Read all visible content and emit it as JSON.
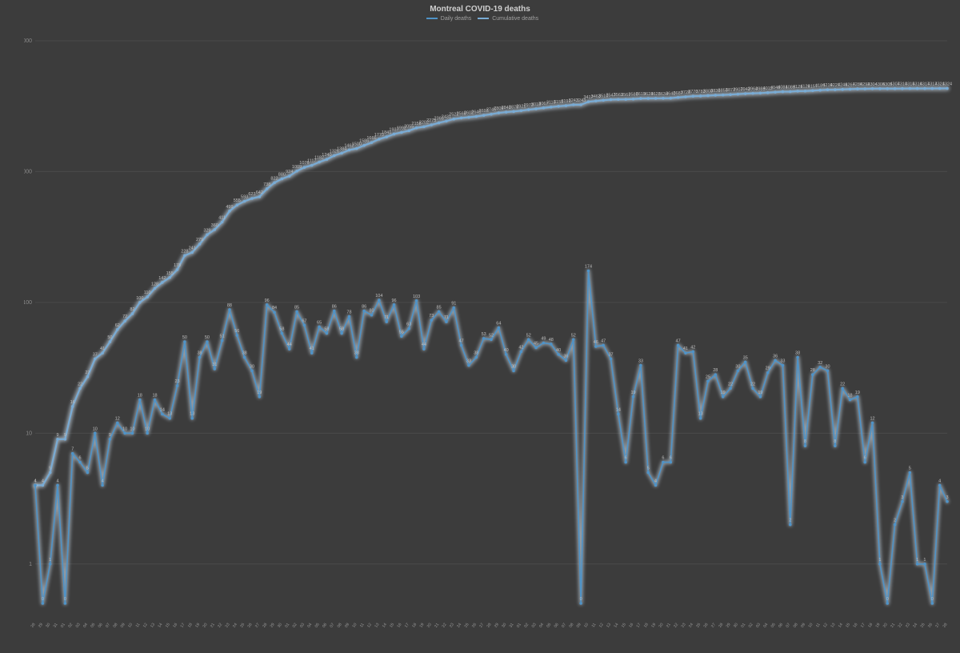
{
  "title": "Montreal COVID-19 deaths",
  "legend": {
    "series1": "Daily deaths",
    "series2": "Cumulative deaths"
  },
  "background_color": "#3c3c3c",
  "grid_color": "#4a4a4a",
  "glow_color": "#dbeeff",
  "y_axis": {
    "scale": "log",
    "ticks": [
      1,
      10,
      100,
      1000,
      10000
    ],
    "min": 0.5,
    "max": 12000
  },
  "series": {
    "daily": {
      "name": "Daily deaths",
      "color": "#4f93c7",
      "line_width": 1.6,
      "marker": "circle",
      "marker_radius": 1.8,
      "show_label": true,
      "label_fontsize": 5.5
    },
    "cumulative": {
      "name": "Cumulative deaths",
      "color": "#79abd4",
      "line_width": 2.2,
      "marker": "circle",
      "marker_radius": 1.8,
      "show_label": true,
      "label_fontsize": 5.5
    }
  },
  "x_dates": [
    "2020-03-28",
    "2020-03-29",
    "2020-03-30",
    "2020-03-31",
    "2020-04-01",
    "2020-04-02",
    "2020-04-03",
    "2020-04-04",
    "2020-04-05",
    "2020-04-06",
    "2020-04-07",
    "2020-04-08",
    "2020-04-09",
    "2020-04-10",
    "2020-04-11",
    "2020-04-12",
    "2020-04-13",
    "2020-04-14",
    "2020-04-15",
    "2020-04-16",
    "2020-04-17",
    "2020-04-18",
    "2020-04-19",
    "2020-04-20",
    "2020-04-21",
    "2020-04-22",
    "2020-04-23",
    "2020-04-24",
    "2020-04-25",
    "2020-04-26",
    "2020-04-27",
    "2020-04-28",
    "2020-04-29",
    "2020-04-30",
    "2020-05-01",
    "2020-05-02",
    "2020-05-03",
    "2020-05-04",
    "2020-05-05",
    "2020-05-06",
    "2020-05-07",
    "2020-05-08",
    "2020-05-09",
    "2020-05-10",
    "2020-05-11",
    "2020-05-12",
    "2020-05-13",
    "2020-05-14",
    "2020-05-15",
    "2020-05-16",
    "2020-05-17",
    "2020-05-18",
    "2020-05-19",
    "2020-05-20",
    "2020-05-21",
    "2020-05-22",
    "2020-05-23",
    "2020-05-24",
    "2020-05-25",
    "2020-05-26",
    "2020-05-27",
    "2020-05-28",
    "2020-05-29",
    "2020-05-30",
    "2020-05-31",
    "2020-06-01",
    "2020-06-02",
    "2020-06-03",
    "2020-06-04",
    "2020-06-05",
    "2020-06-06",
    "2020-06-07",
    "2020-06-08",
    "2020-06-09",
    "2020-06-10",
    "2020-06-11",
    "2020-06-12",
    "2020-06-13",
    "2020-06-14",
    "2020-06-15",
    "2020-06-16",
    "2020-06-17",
    "2020-06-18",
    "2020-06-19",
    "2020-06-20",
    "2020-06-21",
    "2020-06-22",
    "2020-06-23",
    "2020-06-24",
    "2020-06-25",
    "2020-06-26",
    "2020-06-27",
    "2020-06-28",
    "2020-06-29",
    "2020-06-30",
    "2020-07-01",
    "2020-07-02",
    "2020-07-03",
    "2020-07-04",
    "2020-07-05",
    "2020-07-06",
    "2020-07-07",
    "2020-07-08",
    "2020-07-09",
    "2020-07-10",
    "2020-07-11",
    "2020-07-12",
    "2020-07-13",
    "2020-07-14",
    "2020-07-15",
    "2020-07-16",
    "2020-07-17",
    "2020-07-18",
    "2020-07-19",
    "2020-07-20",
    "2020-07-21",
    "2020-07-22",
    "2020-07-23",
    "2020-07-24",
    "2020-07-25",
    "2020-07-26",
    "2020-07-27",
    "2020-07-28"
  ],
  "daily_values": [
    4,
    0,
    1,
    4,
    0,
    7,
    6,
    5,
    10,
    4,
    9,
    12,
    10,
    10,
    18,
    10,
    18,
    14,
    13,
    23,
    50,
    13,
    38,
    50,
    31,
    51,
    88,
    56,
    38,
    30,
    19,
    96,
    84,
    58,
    44,
    85,
    67,
    41,
    65,
    58,
    86,
    58,
    78,
    38,
    86,
    80,
    104,
    71,
    96,
    55,
    63,
    103,
    44,
    73,
    85,
    71,
    91,
    47,
    33,
    38,
    53,
    52,
    64,
    40,
    30,
    42,
    52,
    45,
    49,
    48,
    40,
    36,
    52,
    0,
    174,
    46,
    47,
    37,
    14,
    6,
    19,
    33,
    5,
    4,
    6,
    6,
    47,
    41,
    42,
    13,
    25,
    28,
    19,
    22,
    30,
    35,
    22,
    19,
    29,
    36,
    33,
    2,
    38,
    8,
    28,
    32,
    30,
    8,
    22,
    18,
    19,
    6,
    12,
    1,
    0,
    2,
    3,
    5,
    1,
    1,
    0,
    4,
    3
  ],
  "cumulative_values": [
    4,
    4,
    5,
    9,
    9,
    16,
    22,
    27,
    37,
    41,
    50,
    62,
    72,
    82,
    100,
    110,
    128,
    142,
    155,
    178,
    228,
    241,
    279,
    329,
    360,
    411,
    499,
    555,
    593,
    623,
    642,
    738,
    822,
    880,
    924,
    1009,
    1076,
    1117,
    1182,
    1240,
    1326,
    1384,
    1462,
    1500,
    1586,
    1666,
    1770,
    1841,
    1937,
    1992,
    2055,
    2158,
    2202,
    2275,
    2360,
    2431,
    2522,
    2569,
    2602,
    2640,
    2693,
    2745,
    2809,
    2849,
    2879,
    2921,
    2973,
    3018,
    3067,
    3115,
    3155,
    3191,
    3243,
    3243,
    3417,
    3463,
    3510,
    3547,
    3561,
    3567,
    3586,
    3619,
    3624,
    3628,
    3634,
    3640,
    3687,
    3728,
    3770,
    3783,
    3808,
    3836,
    3855,
    3877,
    3907,
    3942,
    3964,
    3983,
    4012,
    4048,
    4081,
    4083,
    4121,
    4129,
    4157,
    4189,
    4219,
    4227,
    4249,
    4267,
    4286,
    4292,
    4304,
    4305,
    4305,
    4307,
    4310,
    4315,
    4316,
    4317,
    4317,
    4321,
    4324
  ]
}
